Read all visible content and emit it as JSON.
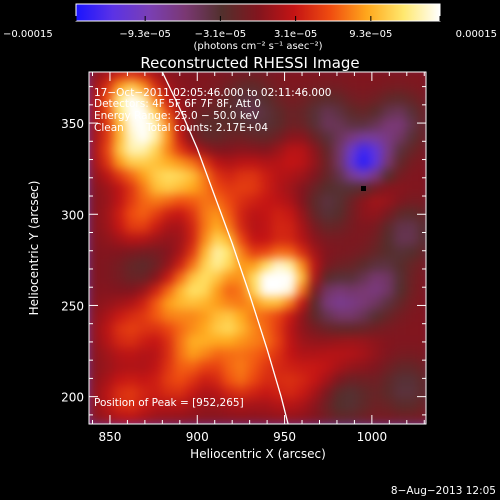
{
  "chart_data": {
    "type": "heatmap",
    "title": "Reconstructed RHESSI Image",
    "xlabel": "Heliocentric X (arcsec)",
    "ylabel": "Heliocentric Y (arcsec)",
    "xlim": [
      838,
      1031
    ],
    "ylim": [
      185,
      378
    ],
    "x_ticks": [
      850,
      900,
      950,
      1000
    ],
    "y_ticks": [
      200,
      250,
      300,
      350
    ],
    "colorbar": {
      "min": -0.00015,
      "max": 0.00015,
      "tick_values": [
        -0.00015,
        -9.3e-05,
        -3.1e-05,
        3.1e-05,
        9.3e-05,
        0.00015
      ],
      "tick_labels": [
        "−0.00015",
        "−9.3e−05",
        "−3.1e−05",
        "3.1e−05",
        "9.3e−05",
        "0.00015"
      ],
      "units_label": "(photons cm⁻² s⁻¹ asec⁻²)",
      "colors": [
        "#1a14ff",
        "#5a32e6",
        "#7a3fb5",
        "#7a3873",
        "#52302d",
        "#82151e",
        "#c41414",
        "#f04d10",
        "#ffa81c",
        "#ffe86e",
        "#ffffff"
      ]
    },
    "annotations": {
      "time_range": "17−Oct−2011 02:05:46.000 to 02:11:46.000",
      "detectors": "Detectors: 4F 5F 6F 7F 8F, Att 0",
      "energy_range": "Energy Range: 25.0 − 50.0 keV",
      "method": "Clean",
      "total_counts": "Total counts: 2.17E+04",
      "peak_position": "Position of Peak = [952,265]"
    },
    "limb_curve": {
      "description": "solar limb",
      "points": [
        [
          880,
          378
        ],
        [
          890,
          358
        ],
        [
          900,
          336
        ],
        [
          910,
          310
        ],
        [
          920,
          284
        ],
        [
          930,
          256
        ],
        [
          940,
          226
        ],
        [
          948,
          200
        ],
        [
          952,
          185
        ]
      ]
    },
    "sources": [
      {
        "x": 862,
        "y": 362,
        "value": 0.00015
      },
      {
        "x": 875,
        "y": 346,
        "value": 0.00011
      },
      {
        "x": 860,
        "y": 334,
        "value": 0.0001
      },
      {
        "x": 880,
        "y": 318,
        "value": 9e-05
      },
      {
        "x": 898,
        "y": 322,
        "value": 8e-05
      },
      {
        "x": 866,
        "y": 298,
        "value": 6e-05
      },
      {
        "x": 910,
        "y": 300,
        "value": 7e-05
      },
      {
        "x": 930,
        "y": 318,
        "value": 5e-05
      },
      {
        "x": 955,
        "y": 334,
        "value": 4e-05
      },
      {
        "x": 950,
        "y": 296,
        "value": 4e-05
      },
      {
        "x": 914,
        "y": 278,
        "value": 0.00012
      },
      {
        "x": 900,
        "y": 260,
        "value": 0.0001
      },
      {
        "x": 882,
        "y": 250,
        "value": 7e-05
      },
      {
        "x": 938,
        "y": 262,
        "value": 0.0001
      },
      {
        "x": 952,
        "y": 265,
        "value": 0.00015
      },
      {
        "x": 918,
        "y": 240,
        "value": 0.0001
      },
      {
        "x": 898,
        "y": 228,
        "value": 8e-05
      },
      {
        "x": 860,
        "y": 236,
        "value": 5e-05
      },
      {
        "x": 940,
        "y": 232,
        "value": 6e-05
      },
      {
        "x": 924,
        "y": 212,
        "value": 7e-05
      },
      {
        "x": 888,
        "y": 208,
        "value": 5e-05
      },
      {
        "x": 860,
        "y": 200,
        "value": 5e-05
      },
      {
        "x": 952,
        "y": 206,
        "value": 4e-05
      },
      {
        "x": 972,
        "y": 214,
        "value": 3e-05
      },
      {
        "x": 990,
        "y": 230,
        "value": 3e-05
      },
      {
        "x": 1002,
        "y": 312,
        "value": 3e-05
      },
      {
        "x": 996,
        "y": 330,
        "value": -0.00015
      },
      {
        "x": 1015,
        "y": 350,
        "value": -6e-05
      },
      {
        "x": 975,
        "y": 352,
        "value": -5e-05
      },
      {
        "x": 975,
        "y": 305,
        "value": -4e-05
      },
      {
        "x": 975,
        "y": 255,
        "value": -6e-05
      },
      {
        "x": 1005,
        "y": 262,
        "value": -6e-05
      },
      {
        "x": 1020,
        "y": 290,
        "value": -5e-05
      },
      {
        "x": 990,
        "y": 245,
        "value": -5e-05
      },
      {
        "x": 985,
        "y": 200,
        "value": -4e-05
      },
      {
        "x": 1020,
        "y": 205,
        "value": -4e-05
      },
      {
        "x": 870,
        "y": 270,
        "value": -3e-05
      },
      {
        "x": 905,
        "y": 345,
        "value": -3e-05
      },
      {
        "x": 930,
        "y": 360,
        "value": -4e-05
      },
      {
        "x": 945,
        "y": 345,
        "value": -3e-05
      }
    ]
  },
  "footer": {
    "timestamp": "8−Aug−2013 12:05"
  }
}
